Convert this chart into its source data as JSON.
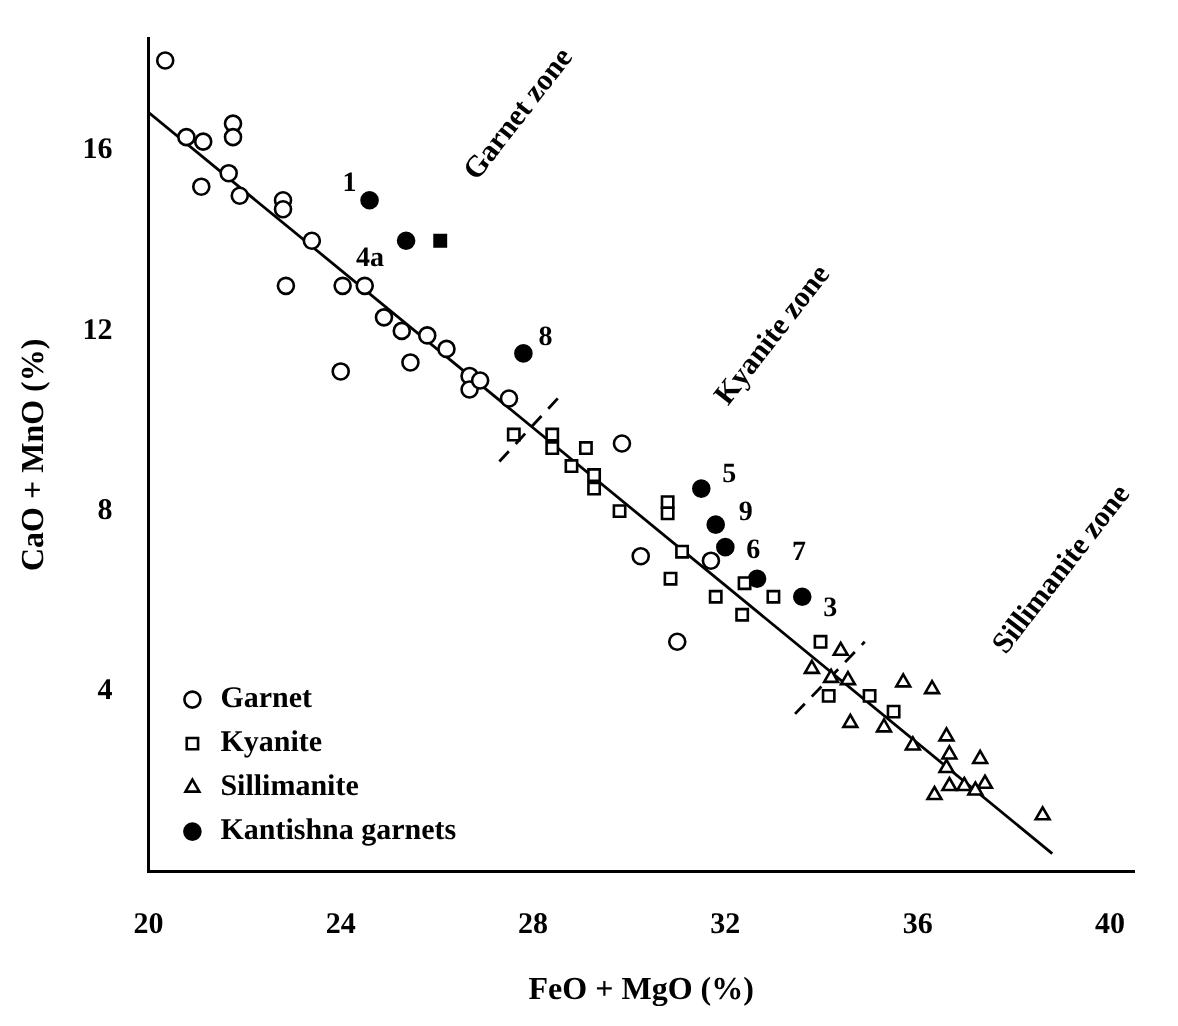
{
  "chart_data": {
    "type": "scatter",
    "xlabel": "FeO + MgO (%)",
    "ylabel": "CaO + MnO (%)",
    "xlim": [
      20,
      40.5
    ],
    "xticks": [
      20,
      24,
      28,
      32,
      36,
      40
    ],
    "ylim": [
      0,
      18.5
    ],
    "yticks": [
      4,
      8,
      12,
      16
    ],
    "grid": false,
    "legend": "bottom left",
    "series": [
      {
        "name": "Garnet",
        "color": "#000000",
        "marker": "circle",
        "x": [
          20.35,
          20.79,
          21.14,
          21.76,
          21.76,
          21.1,
          21.67,
          21.9,
          22.8,
          22.8,
          23.4,
          22.86,
          24.04,
          24.5,
          24.9,
          25.27,
          25.8,
          24.0,
          25.45,
          26.2,
          26.68,
          26.68,
          26.9,
          27.5,
          29.85,
          30.24,
          31.7,
          31.0
        ],
        "values": [
          18.0,
          16.3,
          16.2,
          16.6,
          16.3,
          15.2,
          15.5,
          15.0,
          14.9,
          14.7,
          14.0,
          13.0,
          13.0,
          13.0,
          12.3,
          12.0,
          11.9,
          11.1,
          11.3,
          11.6,
          11.0,
          10.7,
          10.9,
          10.5,
          9.5,
          7.0,
          6.9,
          5.1
        ]
      },
      {
        "name": "Kyanite",
        "color": "#000000",
        "marker": "square",
        "x": [
          27.6,
          28.4,
          28.4,
          29.1,
          28.8,
          29.27,
          29.27,
          29.8,
          30.8,
          30.8,
          31.1,
          30.86,
          31.8,
          32.4,
          33.0,
          32.35,
          33.98,
          34.15,
          35.0,
          35.5
        ],
        "values": [
          9.7,
          9.7,
          9.4,
          9.4,
          9.0,
          8.8,
          8.5,
          8.0,
          8.2,
          7.95,
          7.1,
          6.5,
          6.1,
          6.4,
          6.1,
          5.7,
          5.1,
          3.9,
          3.9,
          3.55
        ]
      },
      {
        "name": "Sillimanite",
        "color": "#000000",
        "marker": "triangle",
        "x": [
          34.4,
          33.8,
          34.2,
          34.55,
          34.6,
          35.7,
          36.3,
          35.3,
          35.9,
          36.6,
          36.66,
          36.6,
          37.3,
          37.4,
          36.35,
          36.66,
          36.97,
          37.2,
          38.6
        ],
        "values": [
          4.9,
          4.5,
          4.3,
          4.25,
          3.3,
          4.2,
          4.05,
          3.2,
          2.8,
          3.0,
          2.6,
          2.3,
          2.5,
          1.95,
          1.7,
          1.9,
          1.9,
          1.8,
          1.25
        ]
      },
      {
        "name": "Kantishna garnets",
        "color": "#000000",
        "marker": "circle",
        "x": [
          24.6,
          25.36,
          27.8,
          31.5,
          31.8,
          32.0,
          32.66,
          33.6
        ],
        "values": [
          14.9,
          14.0,
          11.5,
          8.5,
          7.7,
          7.2,
          6.5,
          6.1
        ]
      },
      {
        "color": "#000000",
        "marker": "square",
        "x": [
          26.07
        ],
        "values": [
          14.0
        ]
      },
      {
        "type": "line",
        "color": "#000000",
        "line_style": "solid",
        "marker": "none",
        "x": [
          20,
          38.8
        ],
        "values": [
          16.85,
          0.4
        ]
      },
      {
        "type": "line",
        "color": "#000000",
        "line_style": "dashed",
        "marker": "none",
        "x": [
          27.3,
          28.6
        ],
        "values": [
          9.1,
          10.6
        ]
      },
      {
        "type": "line",
        "color": "#000000",
        "line_style": "dashed",
        "marker": "none",
        "x": [
          33.45,
          34.9
        ],
        "values": [
          3.5,
          5.1
        ]
      }
    ],
    "annotations": [
      {
        "text": "1",
        "x": 24.6,
        "y": 14.9
      },
      {
        "text": "4a",
        "x": 25.36,
        "y": 14.0
      },
      {
        "text": "8",
        "x": 27.8,
        "y": 11.5
      },
      {
        "text": "5",
        "x": 31.5,
        "y": 8.5
      },
      {
        "text": "9",
        "x": 31.8,
        "y": 7.7
      },
      {
        "text": "6",
        "x": 32.0,
        "y": 7.2
      },
      {
        "text": "7",
        "x": 32.66,
        "y": 6.5
      },
      {
        "text": "3",
        "x": 33.6,
        "y": 6.1
      },
      "Garnet zone",
      "Kyanite zone",
      "Sillimanite zone"
    ]
  }
}
